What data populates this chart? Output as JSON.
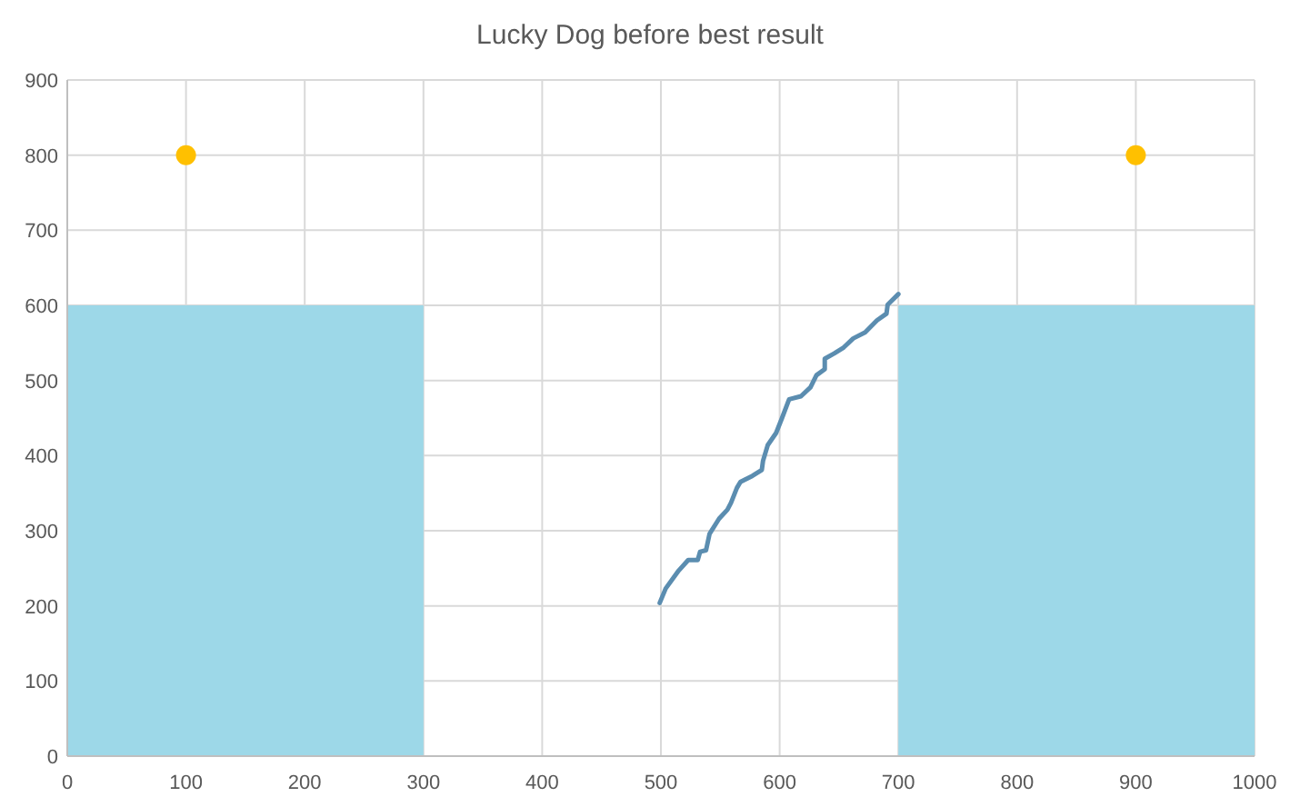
{
  "chart_data": {
    "type": "line",
    "title": "Lucky Dog before best result",
    "xlim": [
      0,
      1000
    ],
    "xticks": [
      0,
      100,
      200,
      300,
      400,
      500,
      600,
      700,
      800,
      900,
      1000
    ],
    "ylim": [
      0,
      900
    ],
    "yticks": [
      0,
      100,
      200,
      300,
      400,
      500,
      600,
      700,
      800,
      900
    ],
    "grid": true,
    "series": [
      {
        "type": "area",
        "color": "#9dd8e8",
        "x": [
          0,
          300
        ],
        "values": [
          600,
          600
        ]
      },
      {
        "type": "area",
        "color": "#9dd8e8",
        "x": [
          700,
          1000
        ],
        "values": [
          600,
          600
        ]
      },
      {
        "color": "#5b8db0",
        "marker": "none",
        "line_style": "solid",
        "x": [
          499,
          504,
          515,
          523,
          531,
          533,
          538,
          541,
          549,
          556,
          559,
          564,
          567,
          577,
          585,
          586,
          590,
          597,
          602,
          608,
          618,
          626,
          631,
          638,
          638,
          646,
          654,
          662,
          672,
          682,
          690,
          691,
          700
        ],
        "values": [
          204,
          223,
          247,
          261,
          261,
          272,
          274,
          296,
          316,
          328,
          337,
          357,
          365,
          373,
          381,
          393,
          414,
          430,
          450,
          475,
          479,
          491,
          507,
          515,
          529,
          536,
          544,
          556,
          564,
          580,
          589,
          601,
          615
        ]
      },
      {
        "type": "scatter",
        "color": "#ffc000",
        "marker": "circle",
        "x": [
          100,
          900
        ],
        "values": [
          800,
          800
        ]
      }
    ]
  }
}
